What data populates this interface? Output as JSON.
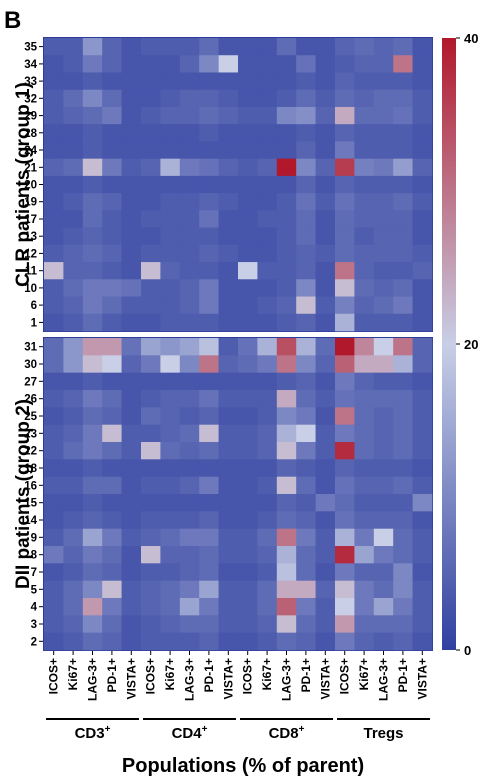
{
  "panel_label": "B",
  "chart_data": {
    "type": "heatmap",
    "xlabel": "Populations (% of parent)",
    "column_labels": [
      "ICOS+",
      "Ki67+",
      "LAG-3+",
      "PD-1+",
      "VISTA+",
      "ICOS+",
      "Ki67+",
      "LAG-3+",
      "PD-1+",
      "VISTA+",
      "ICOS+",
      "Ki67+",
      "LAG-3+",
      "PD-1+",
      "VISTA+",
      "ICOS+",
      "Ki67+",
      "LAG-3+",
      "PD-1+",
      "VISTA+"
    ],
    "column_groups": [
      {
        "base": "CD3",
        "sup": "+",
        "columns": [
          0,
          4
        ]
      },
      {
        "base": "CD4",
        "sup": "+",
        "columns": [
          5,
          9
        ]
      },
      {
        "base": "CD8",
        "sup": "+",
        "columns": [
          10,
          14
        ]
      },
      {
        "base": "Tregs",
        "sup": "",
        "columns": [
          15,
          19
        ]
      }
    ],
    "colorbar": {
      "min": 0,
      "max": 40,
      "ticks": [
        "0",
        "20",
        "40"
      ],
      "colors": [
        "#3040a0",
        "#c8cfe6",
        "#b2182b"
      ]
    },
    "panels": [
      {
        "label": "CLR patients (group 1)",
        "rows": [
          "35",
          "34",
          "33",
          "32",
          "29",
          "28",
          "24",
          "21",
          "20",
          "19",
          "17",
          "13",
          "12",
          "11",
          "10",
          "6",
          "1"
        ],
        "values": [
          [
            4,
            4,
            12,
            5,
            3,
            4,
            4,
            4,
            6,
            3,
            3,
            3,
            6,
            3,
            3,
            5,
            6,
            5,
            6,
            3
          ],
          [
            3,
            4,
            8,
            5,
            3,
            3,
            3,
            5,
            10,
            20,
            3,
            3,
            3,
            7,
            3,
            4,
            5,
            5,
            30,
            3
          ],
          [
            3,
            3,
            4,
            3,
            3,
            3,
            3,
            3,
            3,
            3,
            3,
            3,
            3,
            4,
            3,
            5,
            4,
            4,
            4,
            3
          ],
          [
            4,
            6,
            10,
            6,
            3,
            3,
            4,
            5,
            5,
            4,
            3,
            3,
            4,
            6,
            4,
            6,
            5,
            6,
            6,
            4
          ],
          [
            4,
            5,
            6,
            8,
            3,
            4,
            5,
            5,
            6,
            5,
            4,
            4,
            10,
            11,
            5,
            24,
            6,
            6,
            7,
            4
          ],
          [
            3,
            3,
            4,
            3,
            3,
            3,
            3,
            3,
            4,
            3,
            3,
            3,
            3,
            4,
            3,
            5,
            4,
            4,
            4,
            3
          ],
          [
            3,
            3,
            4,
            3,
            3,
            3,
            3,
            3,
            3,
            3,
            3,
            3,
            3,
            5,
            3,
            8,
            4,
            4,
            4,
            3
          ],
          [
            5,
            6,
            22,
            8,
            4,
            5,
            16,
            8,
            7,
            5,
            4,
            5,
            40,
            10,
            5,
            36,
            9,
            8,
            13,
            5
          ],
          [
            3,
            3,
            4,
            3,
            3,
            3,
            3,
            3,
            3,
            3,
            3,
            3,
            3,
            5,
            3,
            5,
            4,
            4,
            4,
            3
          ],
          [
            3,
            4,
            6,
            5,
            3,
            3,
            4,
            4,
            5,
            4,
            3,
            3,
            4,
            7,
            4,
            7,
            5,
            5,
            6,
            4
          ],
          [
            3,
            3,
            6,
            4,
            3,
            4,
            4,
            4,
            7,
            3,
            3,
            4,
            4,
            6,
            3,
            6,
            5,
            5,
            5,
            3
          ],
          [
            3,
            4,
            5,
            4,
            3,
            3,
            4,
            4,
            4,
            3,
            3,
            3,
            4,
            6,
            3,
            6,
            4,
            5,
            5,
            3
          ],
          [
            4,
            5,
            6,
            5,
            3,
            4,
            4,
            4,
            5,
            4,
            3,
            3,
            4,
            5,
            4,
            6,
            5,
            5,
            5,
            4
          ],
          [
            22,
            5,
            5,
            4,
            3,
            22,
            5,
            4,
            4,
            3,
            20,
            4,
            4,
            5,
            3,
            30,
            5,
            4,
            4,
            5
          ],
          [
            4,
            6,
            8,
            8,
            7,
            4,
            4,
            5,
            8,
            3,
            3,
            3,
            4,
            10,
            3,
            22,
            6,
            5,
            6,
            3
          ],
          [
            4,
            5,
            8,
            6,
            4,
            4,
            4,
            5,
            8,
            3,
            3,
            4,
            5,
            22,
            4,
            9,
            5,
            6,
            8,
            3
          ],
          [
            3,
            4,
            6,
            4,
            3,
            3,
            4,
            4,
            4,
            3,
            3,
            3,
            4,
            5,
            3,
            16,
            4,
            4,
            4,
            3
          ]
        ]
      },
      {
        "label": "DII patients (group 2)",
        "rows": [
          "31",
          "30",
          "27",
          "26",
          "25",
          "23",
          "22",
          "18",
          "16",
          "15",
          "14",
          "9",
          "8",
          "7",
          "5",
          "4",
          "3",
          "2"
        ],
        "values": [
          [
            6,
            12,
            26,
            26,
            7,
            14,
            12,
            14,
            18,
            4,
            7,
            16,
            34,
            16,
            6,
            40,
            28,
            20,
            30,
            5
          ],
          [
            6,
            12,
            22,
            20,
            5,
            8,
            20,
            10,
            30,
            5,
            6,
            8,
            30,
            10,
            5,
            32,
            24,
            24,
            16,
            5
          ],
          [
            3,
            3,
            4,
            3,
            3,
            3,
            3,
            3,
            3,
            3,
            3,
            3,
            4,
            5,
            3,
            8,
            5,
            4,
            4,
            3
          ],
          [
            4,
            5,
            8,
            6,
            3,
            4,
            5,
            5,
            7,
            4,
            4,
            4,
            24,
            6,
            4,
            7,
            6,
            6,
            6,
            4
          ],
          [
            3,
            4,
            6,
            5,
            3,
            6,
            5,
            4,
            5,
            3,
            3,
            4,
            10,
            8,
            3,
            30,
            6,
            5,
            6,
            4
          ],
          [
            4,
            5,
            8,
            22,
            4,
            4,
            5,
            6,
            22,
            4,
            4,
            5,
            16,
            20,
            4,
            8,
            6,
            5,
            6,
            4
          ],
          [
            4,
            6,
            8,
            6,
            4,
            22,
            6,
            5,
            6,
            4,
            4,
            5,
            22,
            8,
            4,
            38,
            6,
            5,
            6,
            4
          ],
          [
            3,
            3,
            4,
            3,
            3,
            3,
            3,
            3,
            3,
            3,
            3,
            3,
            5,
            4,
            3,
            5,
            4,
            4,
            4,
            3
          ],
          [
            4,
            4,
            6,
            6,
            3,
            4,
            4,
            5,
            8,
            3,
            3,
            4,
            22,
            6,
            3,
            7,
            5,
            5,
            6,
            4
          ],
          [
            3,
            3,
            4,
            3,
            3,
            3,
            3,
            3,
            3,
            3,
            3,
            3,
            5,
            4,
            8,
            6,
            4,
            4,
            4,
            10
          ],
          [
            3,
            4,
            5,
            4,
            3,
            4,
            4,
            4,
            5,
            3,
            3,
            4,
            6,
            5,
            3,
            7,
            5,
            5,
            5,
            3
          ],
          [
            4,
            6,
            14,
            8,
            4,
            5,
            6,
            8,
            8,
            4,
            4,
            6,
            30,
            8,
            4,
            16,
            8,
            20,
            6,
            4
          ],
          [
            8,
            5,
            8,
            6,
            3,
            22,
            5,
            5,
            6,
            4,
            4,
            5,
            16,
            6,
            4,
            38,
            14,
            8,
            6,
            4
          ],
          [
            3,
            4,
            6,
            5,
            3,
            4,
            4,
            5,
            6,
            3,
            3,
            4,
            18,
            6,
            3,
            8,
            5,
            5,
            10,
            3
          ],
          [
            4,
            6,
            10,
            22,
            4,
            5,
            6,
            8,
            14,
            4,
            4,
            6,
            24,
            24,
            5,
            22,
            8,
            6,
            10,
            4
          ],
          [
            4,
            6,
            26,
            8,
            4,
            5,
            6,
            14,
            8,
            4,
            4,
            6,
            32,
            8,
            4,
            20,
            8,
            14,
            8,
            4
          ],
          [
            4,
            5,
            10,
            6,
            3,
            4,
            5,
            6,
            6,
            4,
            4,
            5,
            22,
            6,
            4,
            26,
            6,
            6,
            6,
            4
          ],
          [
            3,
            4,
            6,
            5,
            3,
            4,
            4,
            4,
            5,
            3,
            3,
            4,
            6,
            5,
            3,
            8,
            5,
            4,
            5,
            3
          ]
        ]
      }
    ]
  }
}
